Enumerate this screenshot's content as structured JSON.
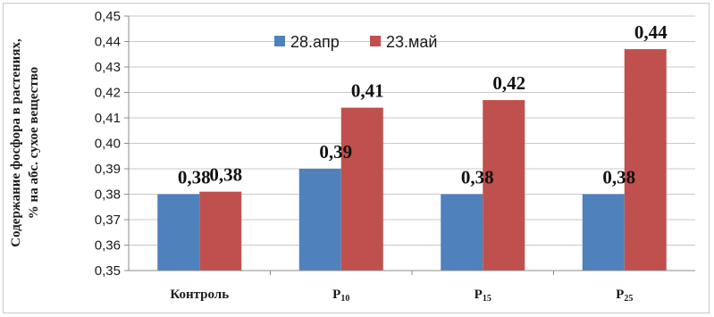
{
  "chart_data": {
    "type": "bar",
    "ylabel_line1": "Содержание фосфора в растениях,",
    "ylabel_line2": "% на абс. сухое вещество",
    "categories": [
      {
        "base": "Контроль",
        "sub": ""
      },
      {
        "base": "P",
        "sub": "10"
      },
      {
        "base": "P",
        "sub": "15"
      },
      {
        "base": "P",
        "sub": "25"
      }
    ],
    "series": [
      {
        "name": "28.апр",
        "color": "#4f81bd",
        "values": [
          0.38,
          0.39,
          0.38,
          0.38
        ],
        "labels": [
          "0,38",
          "0,39",
          "0,38",
          "0,38"
        ]
      },
      {
        "name": "23.май",
        "color": "#c0504d",
        "values": [
          0.381,
          0.414,
          0.417,
          0.437
        ],
        "labels": [
          "0,38",
          "0,41",
          "0,42",
          "0,44"
        ]
      }
    ],
    "ylim": [
      0.35,
      0.45
    ],
    "yticks": [
      0.35,
      0.36,
      0.37,
      0.38,
      0.39,
      0.4,
      0.41,
      0.42,
      0.43,
      0.44,
      0.45
    ],
    "ytick_labels": [
      "0,35",
      "0,36",
      "0,37",
      "0,38",
      "0,39",
      "0,40",
      "0,41",
      "0,42",
      "0,43",
      "0,44",
      "0,45"
    ],
    "grid": true,
    "legend_position": "top-center"
  }
}
